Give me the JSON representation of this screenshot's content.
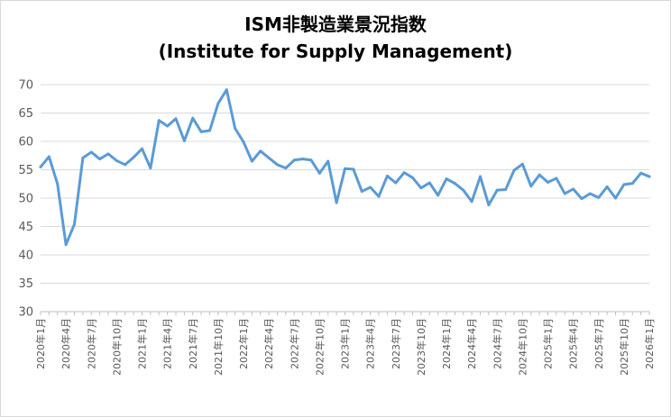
{
  "chart_data": {
    "type": "line",
    "title_line1": "ISM非製造業景況指数",
    "title_line2": "(Institute for Supply Management)",
    "xlabel": "",
    "ylabel": "",
    "ylim": [
      30,
      70
    ],
    "yticks": [
      30,
      35,
      40,
      45,
      50,
      55,
      60,
      65,
      70
    ],
    "grid": "horizontal",
    "legend": "none",
    "line_color": "#5b9bd5",
    "grid_color": "#d9d9d9",
    "x": [
      "2020年1月",
      "2020年2月",
      "2020年3月",
      "2020年4月",
      "2020年5月",
      "2020年6月",
      "2020年7月",
      "2020年8月",
      "2020年9月",
      "2020年10月",
      "2020年11月",
      "2020年12月",
      "2021年1月",
      "2021年2月",
      "2021年3月",
      "2021年4月",
      "2021年5月",
      "2021年6月",
      "2021年7月",
      "2021年8月",
      "2021年9月",
      "2021年10月",
      "2021年11月",
      "2021年12月",
      "2022年1月",
      "2022年2月",
      "2022年3月",
      "2022年4月",
      "2022年5月",
      "2022年6月",
      "2022年7月",
      "2022年8月",
      "2022年9月",
      "2022年10月",
      "2022年11月",
      "2022年12月",
      "2023年1月",
      "2023年2月",
      "2023年3月",
      "2023年4月",
      "2023年5月",
      "2023年6月",
      "2023年7月",
      "2023年8月",
      "2023年9月",
      "2023年10月",
      "2023年11月",
      "2023年12月",
      "2024年1月",
      "2024年2月",
      "2024年3月",
      "2024年4月",
      "2024年5月",
      "2024年6月",
      "2024年7月",
      "2024年8月",
      "2024年9月",
      "2024年10月",
      "2024年11月",
      "2024年12月",
      "2025年1月",
      "2025年2月",
      "2025年3月",
      "2025年4月",
      "2025年5月",
      "2025年6月",
      "2025年7月",
      "2025年8月",
      "2025年9月",
      "2025年10月",
      "2025年11月",
      "2025年12月",
      "2026年1月"
    ],
    "values": [
      55.5,
      57.3,
      52.5,
      41.8,
      45.4,
      57.1,
      58.1,
      56.9,
      57.8,
      56.6,
      55.9,
      57.2,
      58.7,
      55.3,
      63.7,
      62.7,
      64.0,
      60.1,
      64.1,
      61.7,
      61.9,
      66.7,
      69.1,
      62.3,
      59.9,
      56.5,
      58.3,
      57.1,
      55.9,
      55.3,
      56.7,
      56.9,
      56.7,
      54.4,
      56.5,
      49.2,
      55.2,
      55.1,
      51.2,
      51.9,
      50.3,
      53.9,
      52.7,
      54.5,
      53.6,
      51.8,
      52.7,
      50.5,
      53.4,
      52.6,
      51.4,
      49.4,
      53.8,
      48.8,
      51.4,
      51.5,
      54.9,
      56.0,
      52.1,
      54.1,
      52.8,
      53.5,
      50.8,
      51.6,
      49.9,
      50.8,
      50.1,
      52.0,
      50.0,
      52.4,
      52.6,
      54.4,
      53.8
    ],
    "xtick_labels": [
      "2020年1月",
      "2020年4月",
      "2020年7月",
      "2020年10月",
      "2021年1月",
      "2021年4月",
      "2021年7月",
      "2021年10月",
      "2022年1月",
      "2022年4月",
      "2022年7月",
      "2022年10月",
      "2023年1月",
      "2023年4月",
      "2023年7月",
      "2023年10月",
      "2024年1月",
      "2024年4月",
      "2024年7月",
      "2024年10月",
      "2025年1月",
      "2025年4月",
      "2025年7月",
      "2025年10月",
      "2026年1月"
    ]
  }
}
